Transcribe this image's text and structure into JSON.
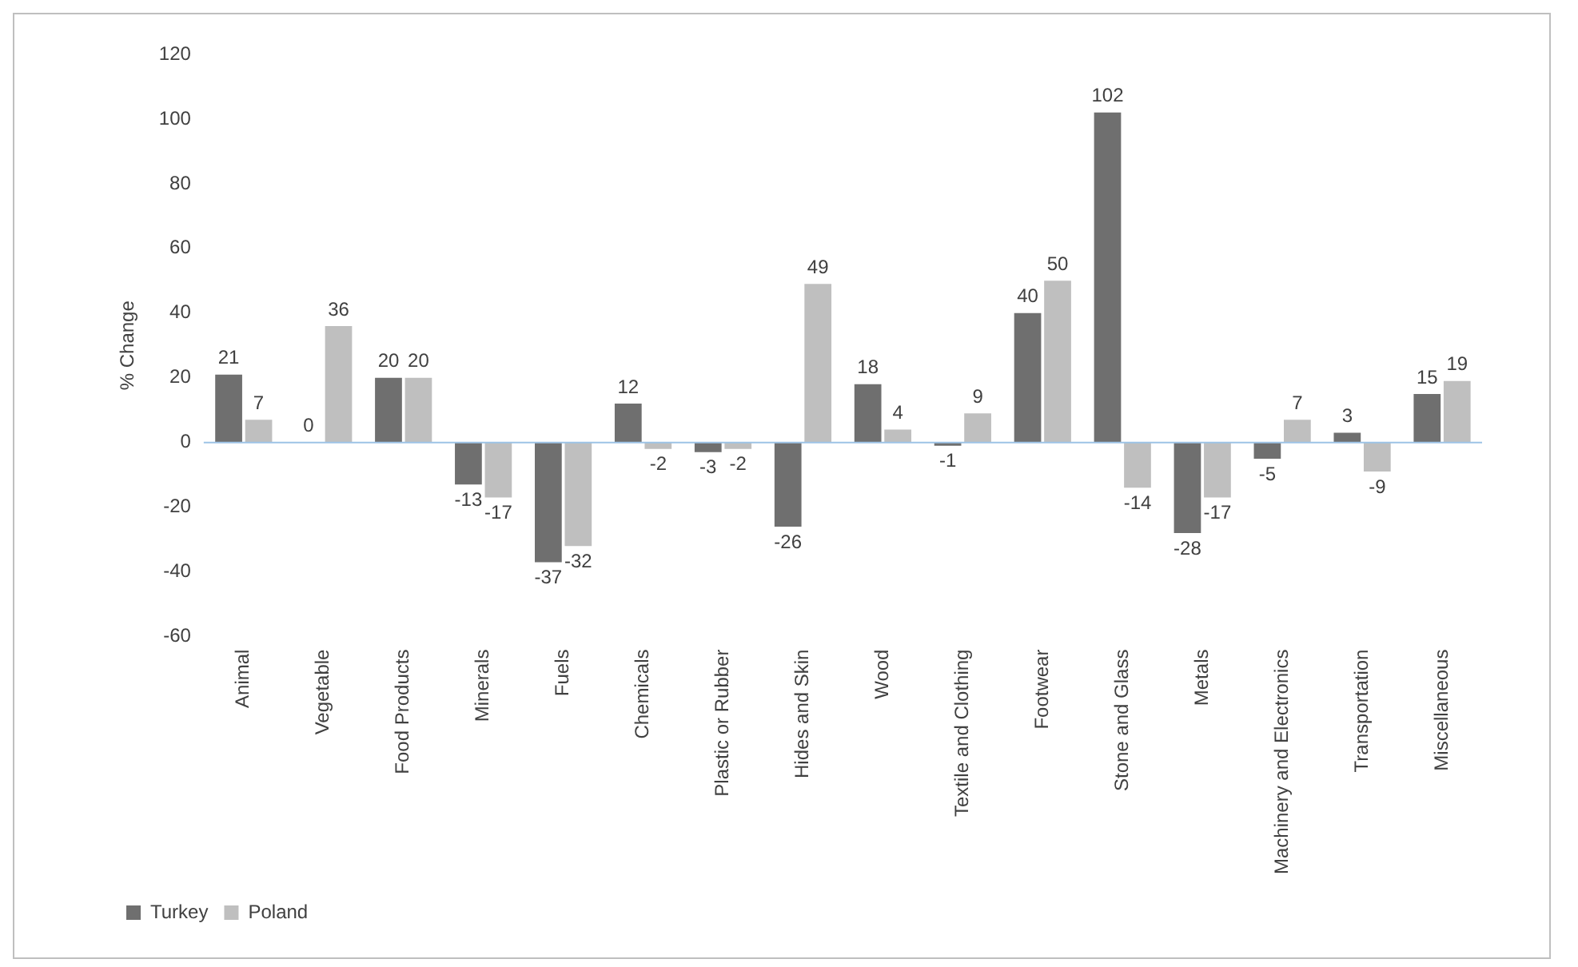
{
  "chart_data": {
    "type": "bar",
    "ylabel": "% Change",
    "categories": [
      "Animal",
      "Vegetable",
      "Food Products",
      "Minerals",
      "Fuels",
      "Chemicals",
      "Plastic or Rubber",
      "Hides and Skin",
      "Wood",
      "Textile and Clothing",
      "Footwear",
      "Stone and Glass",
      "Metals",
      "Machinery and Electronics",
      "Transportation",
      "Miscellaneous"
    ],
    "series": [
      {
        "name": "Turkey",
        "color": "#6f6f6f",
        "values": [
          21,
          0,
          20,
          -13,
          -37,
          12,
          -3,
          -26,
          18,
          -1,
          40,
          102,
          -28,
          -5,
          3,
          15
        ]
      },
      {
        "name": "Poland",
        "color": "#bfbfbf",
        "values": [
          7,
          36,
          20,
          -17,
          -32,
          -2,
          -2,
          49,
          4,
          9,
          50,
          -14,
          -17,
          7,
          -9,
          19
        ]
      }
    ],
    "ylim": [
      -60,
      120
    ],
    "yticks": [
      -60,
      -40,
      -20,
      0,
      20,
      40,
      60,
      80,
      100,
      120
    ],
    "ref_lines": [
      {
        "axis": "y",
        "value": 0,
        "color": "#9dc3e6"
      }
    ],
    "grid": false,
    "legend": "bottom left",
    "data_labels": true
  }
}
